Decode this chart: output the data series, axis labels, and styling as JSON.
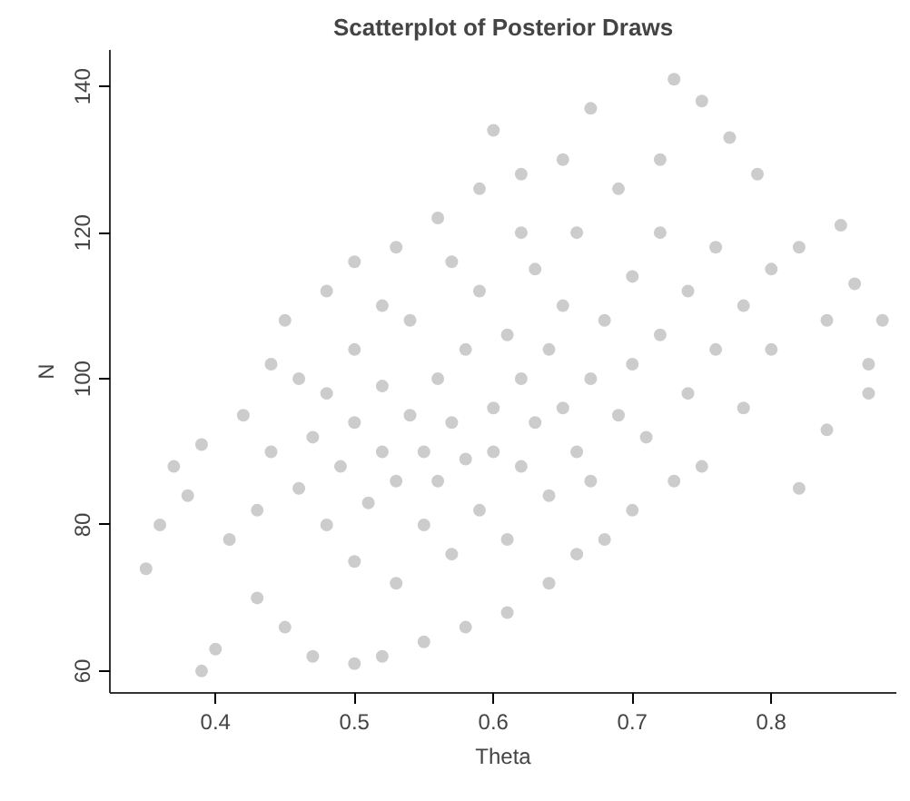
{
  "chart_data": {
    "type": "scatter",
    "title": "Scatterplot of Posterior Draws",
    "xlabel": "Theta",
    "ylabel": "N",
    "xlim": [
      0.324,
      0.89
    ],
    "ylim": [
      57,
      145
    ],
    "xticks": [
      0.4,
      0.5,
      0.6,
      0.7,
      0.8
    ],
    "yticks": [
      60,
      80,
      100,
      120,
      140
    ],
    "grid": false,
    "marker": "circle",
    "series": [
      {
        "color": "#000000",
        "x": [
          0.35,
          0.36,
          0.37,
          0.38,
          0.39,
          0.39,
          0.4,
          0.41,
          0.42,
          0.43,
          0.44,
          0.45,
          0.45,
          0.47,
          0.48,
          0.5,
          0.5,
          0.52,
          0.53,
          0.55,
          0.56,
          0.58,
          0.59,
          0.6,
          0.61,
          0.62,
          0.64,
          0.65,
          0.66,
          0.67,
          0.68,
          0.69,
          0.7,
          0.72,
          0.73,
          0.73,
          0.75,
          0.75,
          0.77,
          0.78,
          0.79,
          0.8,
          0.82,
          0.82,
          0.84,
          0.84,
          0.85,
          0.86,
          0.87,
          0.88,
          0.87,
          0.46,
          0.47,
          0.48,
          0.48,
          0.49,
          0.5,
          0.5,
          0.5,
          0.51,
          0.52,
          0.52,
          0.53,
          0.53,
          0.54,
          0.54,
          0.55,
          0.55,
          0.56,
          0.56,
          0.57,
          0.57,
          0.58,
          0.58,
          0.59,
          0.59,
          0.6,
          0.6,
          0.61,
          0.61,
          0.62,
          0.62,
          0.63,
          0.63,
          0.64,
          0.64,
          0.65,
          0.65,
          0.66,
          0.66,
          0.67,
          0.67,
          0.68,
          0.69,
          0.7,
          0.7,
          0.71,
          0.72,
          0.72,
          0.74,
          0.74,
          0.76,
          0.76,
          0.78,
          0.8,
          0.44,
          0.43,
          0.46,
          0.52,
          0.57,
          0.62
        ],
        "values": [
          74,
          80,
          88,
          84,
          60,
          91,
          63,
          78,
          95,
          70,
          102,
          66,
          108,
          62,
          112,
          61,
          116,
          62,
          118,
          64,
          122,
          66,
          126,
          134,
          68,
          128,
          72,
          130,
          76,
          137,
          78,
          126,
          82,
          130,
          141,
          86,
          138,
          88,
          133,
          96,
          128,
          104,
          118,
          85,
          93,
          108,
          121,
          113,
          102,
          108,
          98,
          85,
          92,
          80,
          98,
          88,
          75,
          94,
          104,
          83,
          90,
          99,
          72,
          86,
          95,
          108,
          80,
          90,
          100,
          86,
          94,
          76,
          104,
          89,
          112,
          82,
          96,
          90,
          106,
          78,
          100,
          88,
          115,
          94,
          84,
          104,
          96,
          110,
          90,
          120,
          100,
          86,
          108,
          95,
          114,
          102,
          92,
          120,
          106,
          98,
          112,
          104,
          118,
          110,
          115,
          90,
          82,
          100,
          110,
          116,
          120
        ]
      }
    ]
  }
}
